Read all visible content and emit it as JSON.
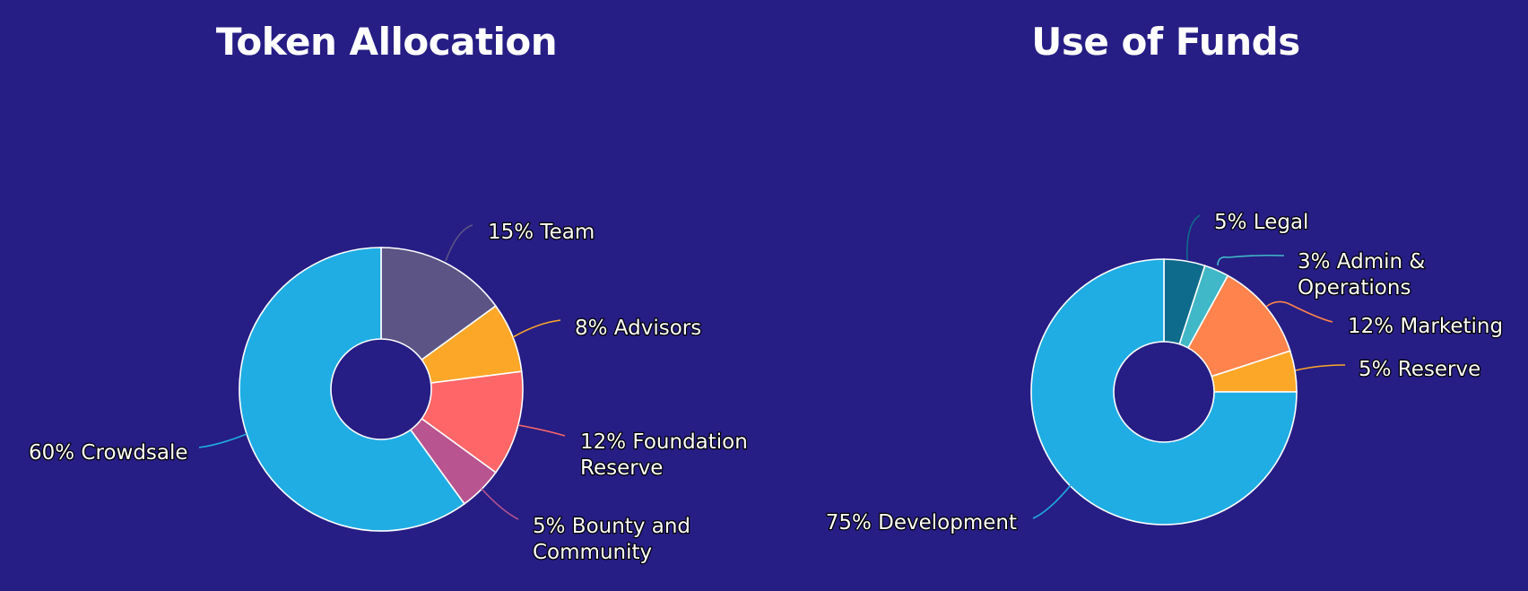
{
  "chart_data": [
    {
      "type": "donut",
      "title": "Token Allocation",
      "slices": [
        {
          "label": [
            "15% Team"
          ],
          "value": 15,
          "color": "#5b5485"
        },
        {
          "label": [
            "8% Advisors"
          ],
          "value": 8,
          "color": "#fda729"
        },
        {
          "label": [
            "12% Foundation",
            "Reserve"
          ],
          "value": 12,
          "color": "#fe6668"
        },
        {
          "label": [
            "5% Bounty and",
            "Community"
          ],
          "value": 5,
          "color": "#b85490"
        },
        {
          "label": [
            "60% Crowdsale"
          ],
          "value": 60,
          "color": "#1fade4"
        }
      ]
    },
    {
      "type": "donut",
      "title": "Use of Funds",
      "slices": [
        {
          "label": [
            "5% Legal"
          ],
          "value": 5,
          "color": "#0f6b8c"
        },
        {
          "label": [
            "3% Admin &",
            "Operations"
          ],
          "value": 3,
          "color": "#41b8c8"
        },
        {
          "label": [
            "12% Marketing"
          ],
          "value": 12,
          "color": "#fe834c"
        },
        {
          "label": [
            "5% Reserve"
          ],
          "value": 5,
          "color": "#fda729"
        },
        {
          "label": [
            "75% Development"
          ],
          "value": 75,
          "color": "#1fade4"
        }
      ]
    }
  ]
}
